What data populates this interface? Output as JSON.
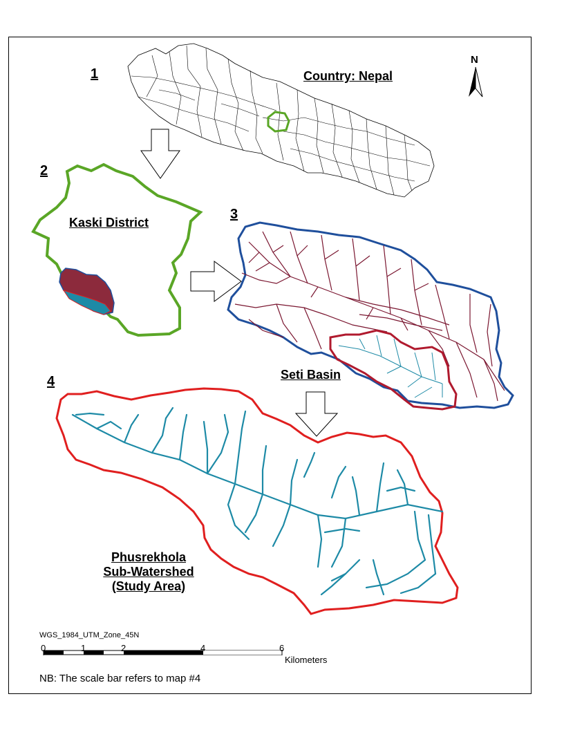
{
  "maps": {
    "m1": {
      "number": "1",
      "title": "Country: Nepal"
    },
    "m2": {
      "number": "2",
      "title": "Kaski District"
    },
    "m3": {
      "number": "3",
      "title": "Seti Basin"
    },
    "m4": {
      "number": "4",
      "title_lines": [
        "Phusrekhola",
        "Sub-Watershed",
        "(Study Area)"
      ]
    }
  },
  "north_arrow": {
    "letter": "N"
  },
  "projection": "WGS_1984_UTM_Zone_45N",
  "scale_bar": {
    "ticks": [
      "0",
      "1",
      "2",
      "4",
      "6"
    ],
    "unit": "Kilometers"
  },
  "note": "NB: The scale bar refers to map #4",
  "colors": {
    "kaski_outline": "#5aa626",
    "seti_outline": "#1f4f9c",
    "study_outline": "#e01f1f",
    "streams_seti": "#7a1630",
    "streams_study": "#1d8aa6"
  }
}
